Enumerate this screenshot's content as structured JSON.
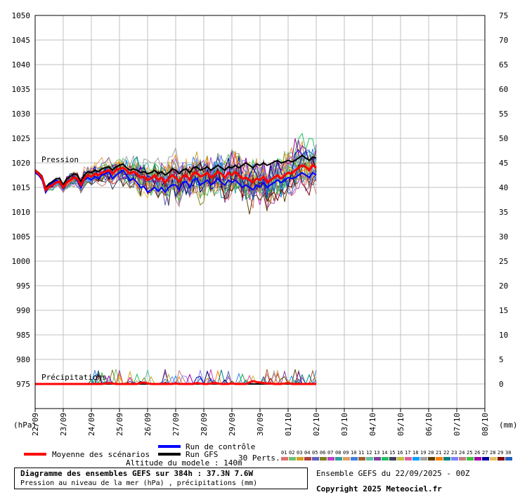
{
  "chart_data": {
    "type": "line",
    "y_left": {
      "min": 970,
      "max": 1050,
      "ticks": [
        975,
        980,
        985,
        990,
        995,
        1000,
        1005,
        1010,
        1015,
        1020,
        1025,
        1030,
        1035,
        1040,
        1045,
        1050
      ],
      "unit_label": "(hPa)"
    },
    "y_right": {
      "min": -5,
      "max": 75,
      "ticks": [
        0,
        5,
        10,
        15,
        20,
        25,
        30,
        35,
        40,
        45,
        50,
        55,
        60,
        65,
        70,
        75
      ],
      "unit_label": "(mm)"
    },
    "x_ticks": [
      "22/09",
      "23/09",
      "24/09",
      "25/09",
      "26/09",
      "27/09",
      "28/09",
      "29/09",
      "30/09",
      "01/10",
      "02/10",
      "03/10",
      "04/10",
      "05/10",
      "06/10",
      "07/10",
      "08/10"
    ],
    "steps_per_day": 8,
    "annotations": {
      "pressure": "Pression",
      "precip": "Précipitations"
    },
    "series": [
      {
        "name": "Moyenne des scénarios",
        "color": "#ff0000",
        "pressure": [
          1018.5,
          1017.8,
          1017.0,
          1014.5,
          1015.2,
          1015.5,
          1016.0,
          1016.2,
          1015.0,
          1016.0,
          1016.5,
          1017.0,
          1016.8,
          1015.5,
          1016.8,
          1017.5,
          1017.2,
          1017.8,
          1017.5,
          1018.0,
          1018.2,
          1018.5,
          1017.8,
          1018.5,
          1018.8,
          1019.0,
          1018.5,
          1017.8,
          1018.2,
          1017.8,
          1017.0,
          1017.2,
          1016.5,
          1016.8,
          1017.5,
          1016.5,
          1017.0,
          1016.0,
          1016.8,
          1017.5,
          1017.0,
          1016.2,
          1017.2,
          1017.5,
          1016.5,
          1017.8,
          1018.0,
          1017.2,
          1017.5,
          1018.0,
          1017.0,
          1017.5,
          1018.2,
          1017.8,
          1017.0,
          1018.0,
          1017.5,
          1018.2,
          1017.5,
          1016.8,
          1017.0,
          1016.5,
          1016.0,
          1016.8,
          1016.5,
          1017.2,
          1016.0,
          1016.5,
          1017.0,
          1017.5,
          1016.8,
          1017.5,
          1018.0,
          1017.8,
          1018.5,
          1019.0,
          1019.5,
          1019.2,
          1018.5,
          1019.5,
          1019.0
        ],
        "precip": [
          0,
          0,
          0,
          0,
          0,
          0,
          0,
          0,
          0,
          0,
          0,
          0,
          0,
          0,
          0,
          0,
          0,
          0,
          0,
          0,
          0.1,
          0.2,
          0.1,
          0,
          0,
          0,
          0,
          0,
          0,
          0,
          0.2,
          0.3,
          0.1,
          0,
          0,
          0,
          0,
          0,
          0,
          0,
          0.1,
          0,
          0,
          0,
          0,
          0,
          0.2,
          0.1,
          0,
          0,
          0.1,
          0.2,
          0.1,
          0,
          0,
          0,
          0.1,
          0,
          0,
          0,
          0,
          0.3,
          0.6,
          0.4,
          0.3,
          0.2,
          0.1,
          0.1,
          0,
          0,
          0,
          0.1,
          0.2,
          0,
          0,
          0,
          0,
          0,
          0,
          0,
          0
        ]
      },
      {
        "name": "Run de contrôle",
        "color": "#0000ff",
        "pressure": [
          1018.0,
          1017.5,
          1016.5,
          1014.0,
          1015.5,
          1016.0,
          1016.5,
          1016.0,
          1014.8,
          1016.2,
          1016.5,
          1017.2,
          1016.5,
          1015.0,
          1016.5,
          1017.0,
          1016.5,
          1017.2,
          1016.8,
          1017.5,
          1017.8,
          1018.2,
          1016.8,
          1017.5,
          1018.0,
          1018.5,
          1017.5,
          1016.5,
          1016.8,
          1016.0,
          1015.0,
          1015.2,
          1014.0,
          1014.5,
          1015.0,
          1014.2,
          1015.0,
          1014.0,
          1015.0,
          1015.5,
          1015.5,
          1014.5,
          1016.0,
          1016.2,
          1015.0,
          1016.5,
          1016.8,
          1015.5,
          1016.0,
          1016.5,
          1015.5,
          1016.0,
          1016.8,
          1016.0,
          1015.5,
          1016.5,
          1016.0,
          1016.5,
          1015.8,
          1015.0,
          1015.5,
          1015.0,
          1014.5,
          1015.5,
          1015.0,
          1016.0,
          1015.0,
          1015.5,
          1016.0,
          1016.5,
          1016.0,
          1016.5,
          1017.0,
          1016.8,
          1017.0,
          1017.5,
          1018.0,
          1017.5,
          1017.0,
          1018.0,
          1017.5
        ],
        "precip": [
          0,
          0,
          0,
          0,
          0,
          0,
          0,
          0,
          0,
          0,
          0,
          0,
          0,
          0,
          0,
          0,
          0,
          0,
          0,
          0,
          0,
          0,
          0,
          0,
          0,
          0,
          0,
          0,
          0,
          0,
          0,
          0,
          0,
          0,
          0,
          0,
          0,
          0,
          0,
          0,
          0,
          0,
          0,
          0,
          0,
          0,
          0,
          0,
          0,
          0,
          0,
          0,
          0,
          0,
          0,
          0,
          0,
          0,
          0,
          0,
          0,
          0,
          0,
          0,
          0,
          0,
          0,
          0,
          0,
          0,
          0,
          0,
          0,
          0,
          0,
          0,
          0,
          0,
          0,
          0,
          0
        ]
      },
      {
        "name": "Run GFS",
        "color": "#000000",
        "pressure": [
          1018.5,
          1018.0,
          1017.2,
          1015.0,
          1015.8,
          1016.2,
          1016.8,
          1016.8,
          1015.5,
          1016.8,
          1017.2,
          1017.8,
          1017.5,
          1016.2,
          1017.5,
          1018.2,
          1018.0,
          1018.5,
          1018.2,
          1018.8,
          1019.0,
          1019.2,
          1018.5,
          1019.2,
          1019.5,
          1019.8,
          1019.0,
          1018.5,
          1018.8,
          1018.5,
          1018.0,
          1018.2,
          1017.8,
          1018.0,
          1018.5,
          1017.8,
          1018.2,
          1017.5,
          1018.0,
          1018.8,
          1018.5,
          1017.8,
          1018.5,
          1018.8,
          1018.0,
          1019.0,
          1019.2,
          1018.5,
          1018.8,
          1019.2,
          1018.5,
          1019.0,
          1019.5,
          1019.0,
          1018.5,
          1019.2,
          1019.0,
          1019.5,
          1019.0,
          1019.5,
          1020.0,
          1019.5,
          1019.0,
          1019.8,
          1019.5,
          1020.0,
          1019.5,
          1019.8,
          1020.2,
          1020.5,
          1020.0,
          1020.2,
          1020.5,
          1020.2,
          1020.5,
          1021.0,
          1021.5,
          1021.0,
          1020.5,
          1021.2,
          1021.0
        ],
        "precip": [
          0,
          0,
          0,
          0,
          0,
          0,
          0,
          0,
          0,
          0,
          0,
          0,
          0,
          0,
          0,
          0,
          0,
          0,
          0,
          0,
          0,
          0,
          0,
          0,
          0,
          0,
          0,
          0,
          0,
          0,
          0,
          0,
          0,
          0,
          0,
          0,
          0,
          0,
          0,
          0,
          0,
          0,
          0,
          0,
          0,
          0,
          0,
          0,
          0,
          0,
          0,
          0,
          0,
          0,
          0,
          0,
          0,
          0,
          0,
          0,
          0,
          0,
          0,
          0,
          0,
          0,
          0,
          0,
          0,
          0,
          0,
          0,
          0,
          0,
          0,
          0,
          0,
          0,
          0,
          0,
          0
        ]
      }
    ],
    "perturbation_colors": [
      "#e07070",
      "#70c070",
      "#d4a020",
      "#b04040",
      "#6060c0",
      "#808020",
      "#c040c0",
      "#30a0a0",
      "#e0a060",
      "#4080e0",
      "#a06030",
      "#60c0a0",
      "#8040a0",
      "#20c060",
      "#404060",
      "#c0c040",
      "#e060a0",
      "#00a0ff",
      "#a0a0a0",
      "#604000",
      "#ff8000",
      "#008080",
      "#8080ff",
      "#c08080",
      "#40c040",
      "#a000a0",
      "#0000a0",
      "#e0c060",
      "#800000",
      "#2060c0"
    ]
  },
  "legend": {
    "mean_label": "Moyenne des scénarios",
    "control_label": "Run de contrôle",
    "gfs_label": "Run GFS",
    "perts_label": "30 Perts.",
    "pert_numbers": [
      "01",
      "02",
      "03",
      "04",
      "05",
      "06",
      "07",
      "08",
      "09",
      "10",
      "11",
      "12",
      "13",
      "14",
      "15",
      "16",
      "17",
      "18",
      "19",
      "20",
      "21",
      "22",
      "23",
      "24",
      "25",
      "26",
      "27",
      "28",
      "29",
      "30"
    ]
  },
  "info": {
    "altitude": "Altitude du modele : 140m",
    "title": "Diagramme des ensembles GEFS sur 384h : 37.3N 7.6W",
    "subtitle": "Pression au niveau de la mer (hPa) , précipitations (mm)",
    "run": "Ensemble GEFS du 22/09/2025 - 00Z",
    "copyright": "Copyright 2025 Meteociel.fr"
  }
}
